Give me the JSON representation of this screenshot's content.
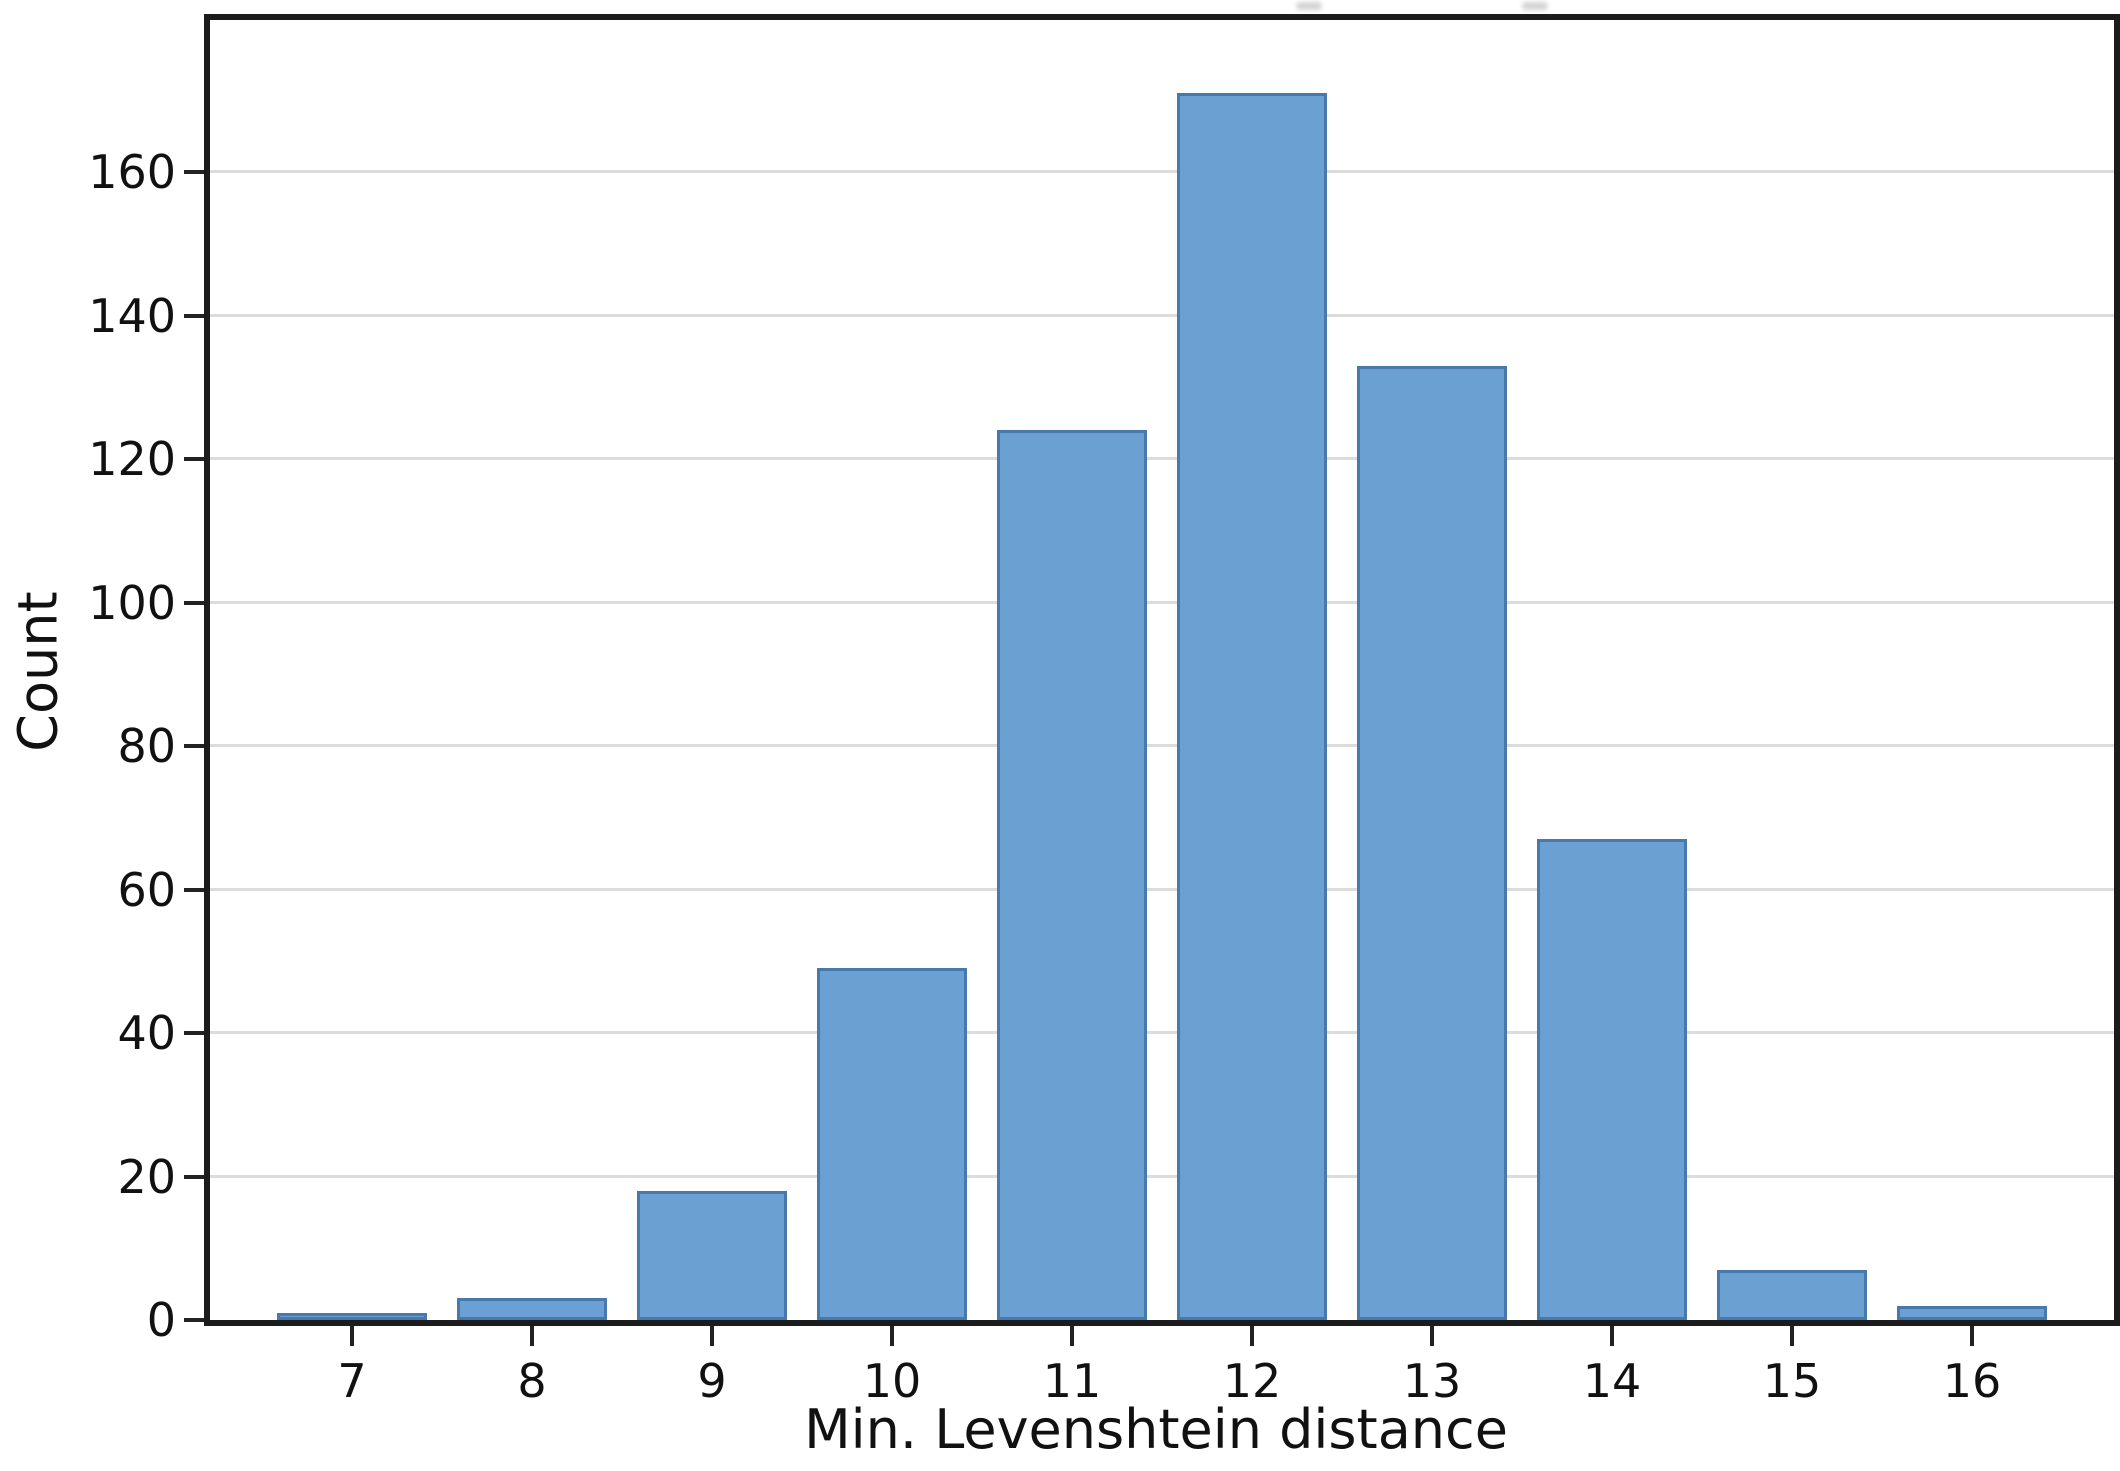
{
  "figure": {
    "background": "#ffffff"
  },
  "chart_data": {
    "type": "bar",
    "title": "",
    "xlabel": "Min. Levenshtein distance",
    "ylabel": "Count",
    "categories": [
      "7",
      "8",
      "9",
      "10",
      "11",
      "12",
      "13",
      "14",
      "15",
      "16"
    ],
    "values": [
      1,
      3,
      18,
      49,
      124,
      171,
      133,
      67,
      7,
      2
    ],
    "yticks": [
      0,
      20,
      40,
      60,
      80,
      100,
      120,
      140,
      160
    ],
    "ylim": [
      0,
      181
    ],
    "grid": "horizontal-only",
    "legend": "none",
    "bar_color": "#6ba0d3",
    "bar_edge_color": "#4878ac",
    "grid_color": "#dcdcdc",
    "spine_color": "#1c1c1c",
    "text_color": "#111111"
  }
}
